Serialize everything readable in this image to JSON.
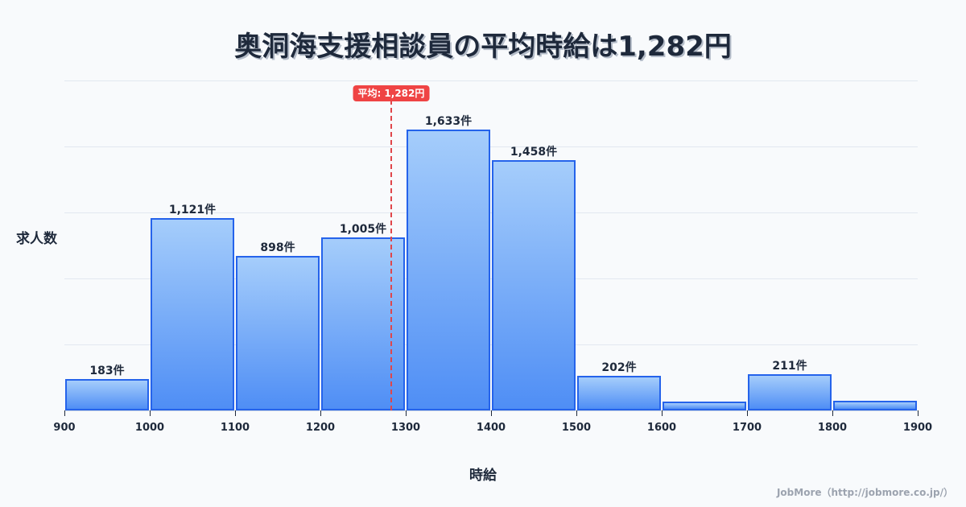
{
  "title": "奥洞海支援相談員の平均時給は1,282円",
  "y_axis_label": "求人数",
  "x_axis_label": "時給",
  "mean_badge": "平均: 1,282円",
  "credit": "JobMore（http://jobmore.co.jp/）",
  "bar_labels": [
    "183件",
    "1,121件",
    "898件",
    "1,005件",
    "1,633件",
    "1,458件",
    "202件",
    "",
    "211件",
    ""
  ],
  "tick_labels": [
    "900",
    "1000",
    "1100",
    "1200",
    "1300",
    "1400",
    "1500",
    "1600",
    "1700",
    "1800",
    "1900"
  ],
  "colors": {
    "bar_border": "#2563eb",
    "bar_top": "#a5cdfb",
    "bar_bottom": "#4f8ef5",
    "mean_line": "#ef4444",
    "text": "#1e293b",
    "background": "#f8fafc"
  },
  "chart_data": {
    "type": "bar",
    "title": "奥洞海支援相談員の平均時給は1,282円",
    "xlabel": "時給",
    "ylabel": "求人数",
    "bins": [
      [
        900,
        1000
      ],
      [
        1000,
        1100
      ],
      [
        1100,
        1200
      ],
      [
        1200,
        1300
      ],
      [
        1300,
        1400
      ],
      [
        1400,
        1500
      ],
      [
        1500,
        1600
      ],
      [
        1600,
        1700
      ],
      [
        1700,
        1800
      ],
      [
        1800,
        1900
      ]
    ],
    "categories": [
      "900-1000",
      "1000-1100",
      "1100-1200",
      "1200-1300",
      "1300-1400",
      "1400-1500",
      "1500-1600",
      "1600-1700",
      "1700-1800",
      "1800-1900"
    ],
    "values": [
      183,
      1121,
      898,
      1005,
      1633,
      1458,
      202,
      51,
      211,
      56
    ],
    "value_labels": [
      "183件",
      "1,121件",
      "898件",
      "1,005件",
      "1,633件",
      "1,458件",
      "202件",
      "",
      "211件",
      ""
    ],
    "x_ticks": [
      900,
      1000,
      1100,
      1200,
      1300,
      1400,
      1500,
      1600,
      1700,
      1800,
      1900
    ],
    "xlim": [
      900,
      1900
    ],
    "ylim": [
      0,
      1920
    ],
    "grid": true,
    "annotations": [
      {
        "type": "vline",
        "x": 1282,
        "label": "平均: 1,282円",
        "style": "dashed",
        "color": "#ef4444"
      }
    ],
    "legend": null
  }
}
